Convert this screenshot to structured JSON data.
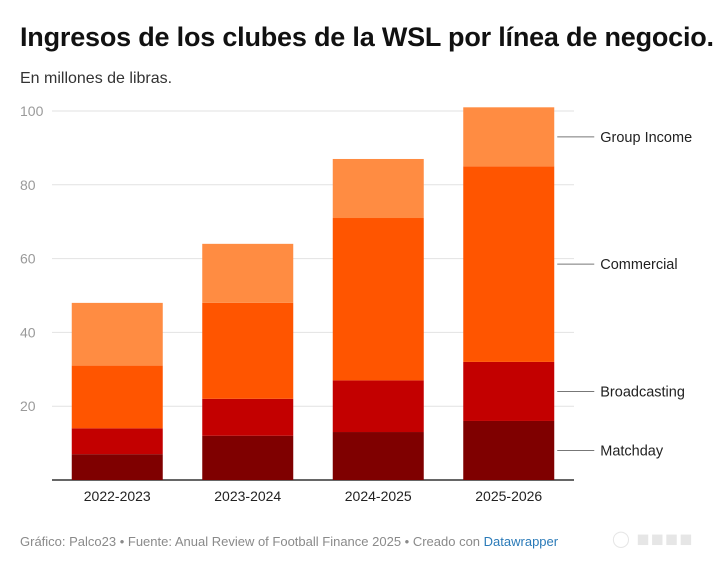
{
  "header": {
    "title": "Ingresos de los clubes de la WSL por línea de negocio.",
    "subtitle": "En millones de libras."
  },
  "footer": {
    "prefix": "Gráfico: Palco23 • Fuente: Anual Review of Football Finance 2025 • Creado con ",
    "link": "Datawrapper"
  },
  "colors": {
    "matchday": "#7f0000",
    "broadcasting": "#c30000",
    "commercial": "#ff5500",
    "group_income": "#ff8c42",
    "grid": "#e2e2e2",
    "axis": "#333333"
  },
  "chart_data": {
    "type": "bar",
    "stacked": true,
    "title": "Ingresos de los clubes de la WSL por línea de negocio.",
    "subtitle": "En millones de libras.",
    "categories": [
      "2022-2023",
      "2023-2024",
      "2024-2025",
      "2025-2026"
    ],
    "series": [
      {
        "name": "Matchday",
        "color": "#7f0000",
        "values": [
          7,
          12,
          13,
          16
        ]
      },
      {
        "name": "Broadcasting",
        "color": "#c30000",
        "values": [
          7,
          10,
          14,
          16
        ]
      },
      {
        "name": "Commercial",
        "color": "#ff5500",
        "values": [
          17,
          26,
          44,
          53
        ]
      },
      {
        "name": "Group Income",
        "color": "#ff8c42",
        "values": [
          17,
          16,
          16,
          16
        ]
      }
    ],
    "ylim": [
      0,
      100
    ],
    "yticks": [
      20,
      40,
      60,
      80,
      100
    ],
    "grid": true,
    "legend": "direct labels on right"
  }
}
